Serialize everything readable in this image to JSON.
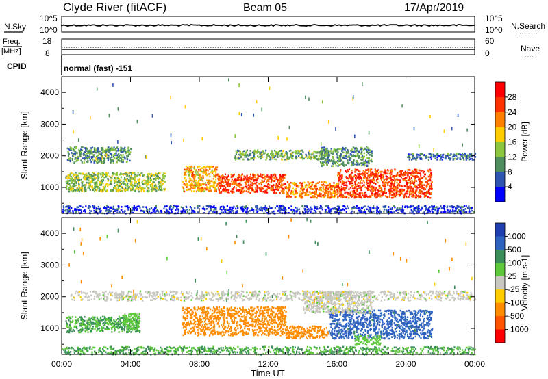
{
  "header": {
    "station": "Clyde River (fitACF)",
    "beam": "Beam 05",
    "date": "17/Apr/2019"
  },
  "strip1": {
    "left_label": "N.Sky",
    "left_ticks": [
      "10^5",
      "10^0"
    ],
    "right_ticks": [
      "10^5",
      "10^0"
    ],
    "right_label": "N.Search",
    "right_legend_dots": "........"
  },
  "strip2": {
    "left_label_line1": "Freq.",
    "left_label_line2": "[MHz]",
    "left_ticks": [
      "18",
      "8"
    ],
    "right_ticks": [
      "60",
      "0"
    ],
    "right_label": "Nave",
    "right_legend_dots": "...."
  },
  "cpid": {
    "label": "CPID",
    "value": "normal (fast) -151"
  },
  "axes": {
    "ylabel": "Slant Range [km]",
    "xlabel": "Time UT",
    "xticks": [
      "00:00",
      "04:00",
      "08:00",
      "12:00",
      "16:00",
      "20:00",
      "00:00"
    ],
    "yticks": [
      "1000",
      "2000",
      "3000",
      "4000"
    ]
  },
  "chart_data": [
    {
      "type": "heatmap",
      "title": "Power",
      "x_range_hours": [
        0,
        24
      ],
      "y_range_km": [
        180,
        4500
      ],
      "colorbar": {
        "label": "Power [dB]",
        "ticks": [
          "4",
          "8",
          "12",
          "16",
          "20",
          "24",
          "28"
        ],
        "colors": [
          "#0000ff",
          "#2e55b0",
          "#4f8f5f",
          "#8cc63f",
          "#ffcc00",
          "#ff8000",
          "#ff3300",
          "#ff0000"
        ]
      },
      "features": [
        {
          "x": [
            0.0,
            24.0
          ],
          "y": [
            200,
            450
          ],
          "value": 4
        },
        {
          "x": [
            0.2,
            6.0
          ],
          "y": [
            900,
            1500
          ],
          "value": 14
        },
        {
          "x": [
            7.0,
            9.0
          ],
          "y": [
            900,
            1700
          ],
          "value": 20
        },
        {
          "x": [
            9.0,
            13.0
          ],
          "y": [
            850,
            1450
          ],
          "value": 26
        },
        {
          "x": [
            13.0,
            16.0
          ],
          "y": [
            700,
            1200
          ],
          "value": 22
        },
        {
          "x": [
            16.0,
            21.5
          ],
          "y": [
            700,
            1600
          ],
          "value": 26
        },
        {
          "x": [
            0.3,
            4.0
          ],
          "y": [
            1800,
            2300
          ],
          "value": 10
        },
        {
          "x": [
            10.0,
            15.5
          ],
          "y": [
            1900,
            2200
          ],
          "value": 12
        },
        {
          "x": [
            15.0,
            18.0
          ],
          "y": [
            1700,
            2300
          ],
          "value": 10
        },
        {
          "x": [
            20.0,
            24.0
          ],
          "y": [
            1900,
            2100
          ],
          "value": 8
        }
      ]
    },
    {
      "type": "heatmap",
      "title": "Velocity",
      "x_range_hours": [
        0,
        24
      ],
      "y_range_km": [
        180,
        4500
      ],
      "colorbar": {
        "label": "Velocity [m s-1]",
        "ticks": [
          "1000",
          "500",
          "100",
          "25",
          "-25",
          "-100",
          "-500",
          "-1000"
        ],
        "colors": [
          "#1f3fb0",
          "#2f63c0",
          "#3a8e5a",
          "#5dc93a",
          "#c8c8c0",
          "#ffcc00",
          "#ff8c00",
          "#ff5500",
          "#ff0000"
        ]
      },
      "features": [
        {
          "x": [
            0.0,
            24.0
          ],
          "y": [
            200,
            450
          ],
          "value": 100
        },
        {
          "x": [
            0.2,
            4.5
          ],
          "y": [
            900,
            1400
          ],
          "value": 100
        },
        {
          "x": [
            3.5,
            4.5
          ],
          "y": [
            1000,
            1500
          ],
          "value": 50
        },
        {
          "x": [
            7.0,
            13.0
          ],
          "y": [
            800,
            1700
          ],
          "value": -200
        },
        {
          "x": [
            13.0,
            15.5
          ],
          "y": [
            700,
            1100
          ],
          "value": -200
        },
        {
          "x": [
            15.5,
            21.5
          ],
          "y": [
            700,
            1600
          ],
          "value": 700
        },
        {
          "x": [
            0.5,
            24.0
          ],
          "y": [
            1900,
            2200
          ],
          "value": 0
        },
        {
          "x": [
            14.0,
            18.0
          ],
          "y": [
            1500,
            2200
          ],
          "value": 0
        },
        {
          "x": [
            17.0,
            18.5
          ],
          "y": [
            500,
            800
          ],
          "value": 50
        }
      ]
    }
  ]
}
